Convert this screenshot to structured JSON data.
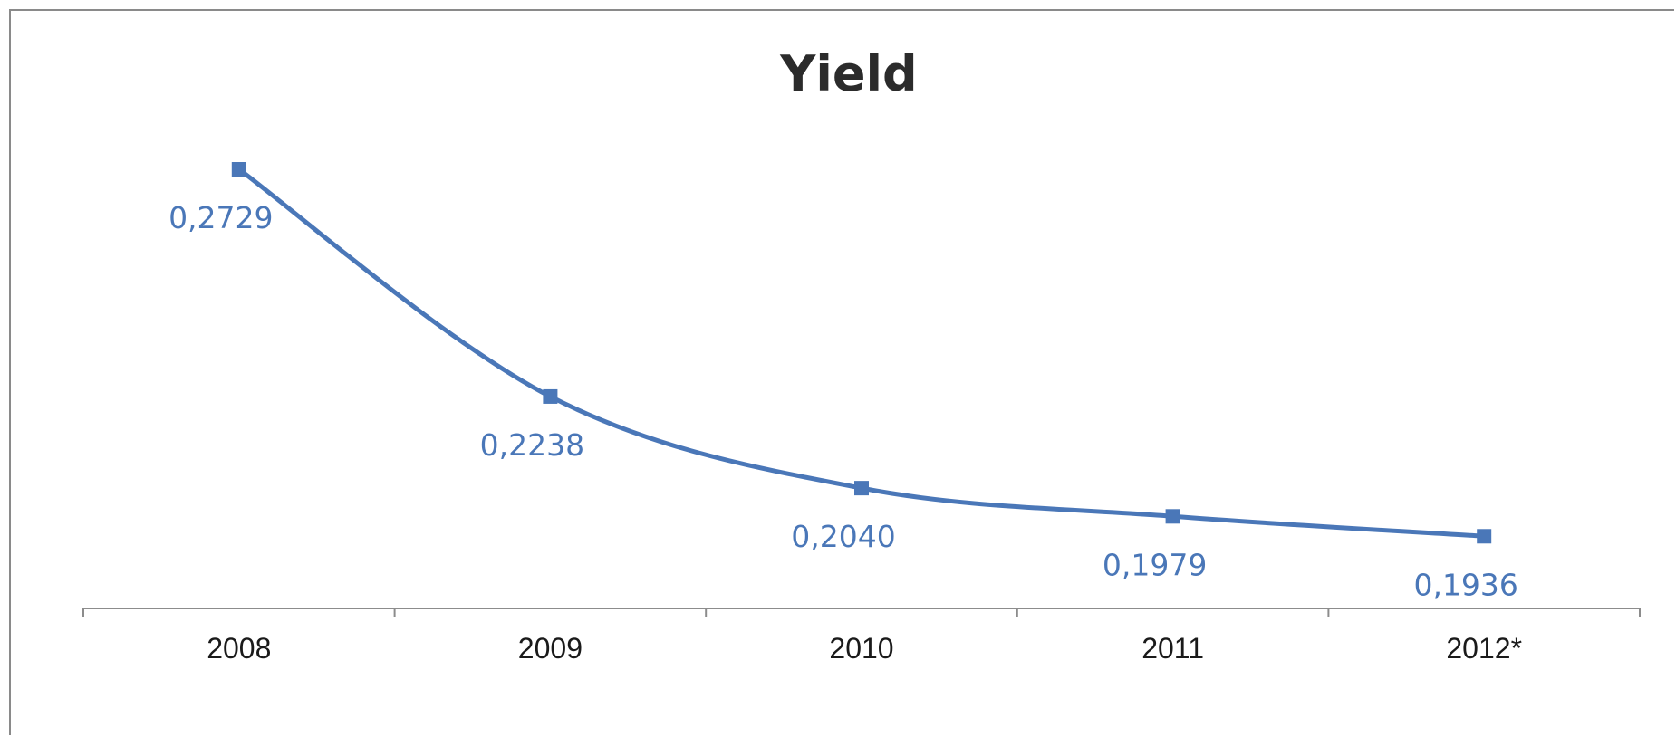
{
  "chart_data": {
    "type": "line",
    "title": "Yield",
    "categories": [
      "2008",
      "2009",
      "2010",
      "2011",
      "2012*"
    ],
    "series": [
      {
        "values": [
          0.2729,
          0.2238,
          0.204,
          0.1979,
          0.1936
        ],
        "labels": [
          "0,2729",
          "0,2238",
          "0,2040",
          "0,1979",
          "0,1936"
        ],
        "color": "#4a77b8",
        "marker": "square",
        "smooth": true
      }
    ],
    "xlabel": "",
    "ylabel": "",
    "ylim": [
      0.178,
      0.2729
    ],
    "y_axis_visible": false,
    "grid": false,
    "legend": "none"
  }
}
